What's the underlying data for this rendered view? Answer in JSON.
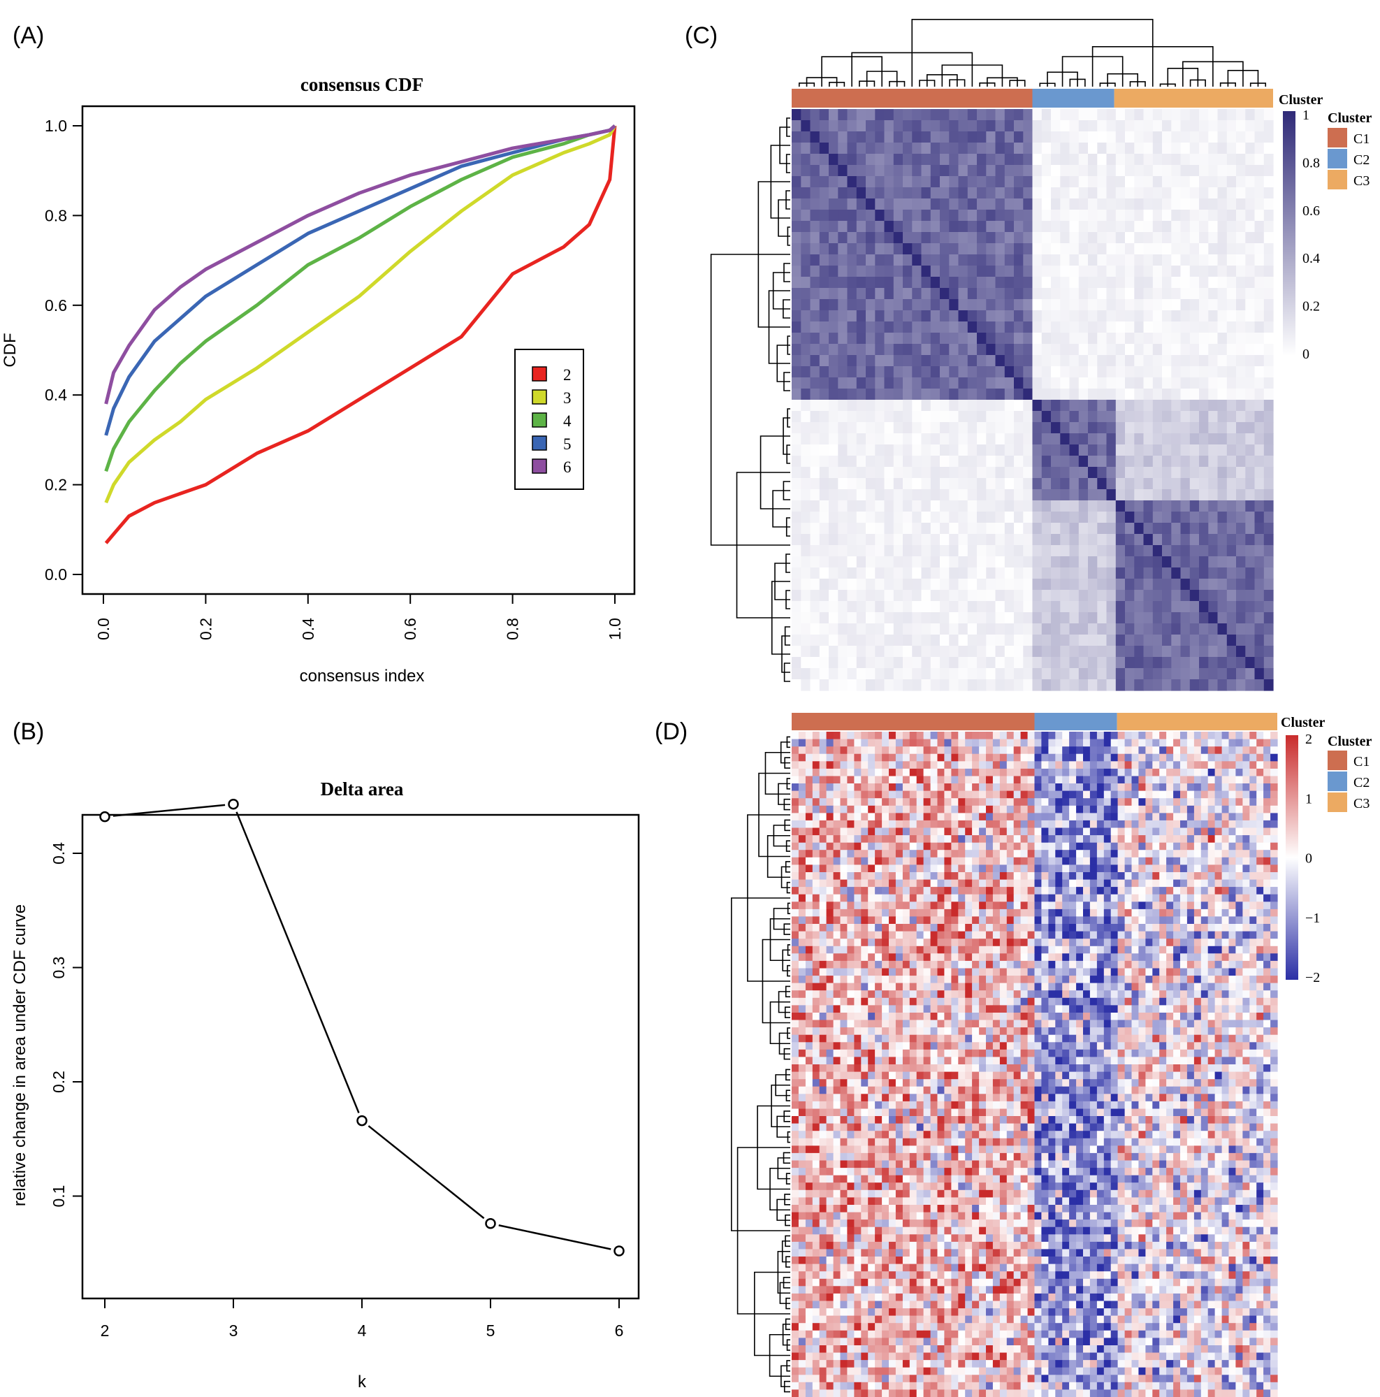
{
  "panels": {
    "a": {
      "tag": "(A)"
    },
    "b": {
      "tag": "(B)"
    },
    "c": {
      "tag": "(C)"
    },
    "d": {
      "tag": "(D)"
    }
  },
  "colors": {
    "k2": "#e82420",
    "k3": "#cfd92a",
    "k4": "#5db346",
    "k5": "#3a66b4",
    "k6": "#8e4ea0",
    "C1": "#cd6e50",
    "C2": "#6a98cf",
    "C3": "#ecaa62",
    "consensus_high": "#2f2a78",
    "expr_high": "#c92b2b",
    "expr_low": "#2b2fa6"
  },
  "chart_data": [
    {
      "id": "consensus-cdf",
      "type": "line",
      "title": "consensus CDF",
      "xlabel": "consensus index",
      "ylabel": "CDF",
      "xlim": [
        0,
        1
      ],
      "ylim": [
        0,
        1
      ],
      "xticks": [
        "0.0",
        "0.2",
        "0.4",
        "0.6",
        "0.8",
        "1.0"
      ],
      "yticks": [
        "0.0",
        "0.2",
        "0.4",
        "0.6",
        "0.8",
        "1.0"
      ],
      "legend_position": "right",
      "x": [
        0.005,
        0.02,
        0.05,
        0.1,
        0.15,
        0.2,
        0.3,
        0.4,
        0.5,
        0.6,
        0.7,
        0.8,
        0.9,
        0.95,
        0.99,
        1.0
      ],
      "series": [
        {
          "name": "2",
          "color_key": "k2",
          "values": [
            0.07,
            0.09,
            0.13,
            0.16,
            0.18,
            0.2,
            0.27,
            0.32,
            0.39,
            0.46,
            0.53,
            0.67,
            0.73,
            0.78,
            0.88,
            1.0
          ]
        },
        {
          "name": "3",
          "color_key": "k3",
          "values": [
            0.16,
            0.2,
            0.25,
            0.3,
            0.34,
            0.39,
            0.46,
            0.54,
            0.62,
            0.72,
            0.81,
            0.89,
            0.94,
            0.96,
            0.98,
            1.0
          ]
        },
        {
          "name": "4",
          "color_key": "k4",
          "values": [
            0.23,
            0.28,
            0.34,
            0.41,
            0.47,
            0.52,
            0.6,
            0.69,
            0.75,
            0.82,
            0.88,
            0.93,
            0.96,
            0.98,
            0.99,
            1.0
          ]
        },
        {
          "name": "5",
          "color_key": "k5",
          "values": [
            0.31,
            0.37,
            0.44,
            0.52,
            0.57,
            0.62,
            0.69,
            0.76,
            0.81,
            0.86,
            0.91,
            0.94,
            0.97,
            0.98,
            0.99,
            1.0
          ]
        },
        {
          "name": "6",
          "color_key": "k6",
          "values": [
            0.38,
            0.45,
            0.51,
            0.59,
            0.64,
            0.68,
            0.74,
            0.8,
            0.85,
            0.89,
            0.92,
            0.95,
            0.97,
            0.98,
            0.99,
            1.0
          ]
        }
      ]
    },
    {
      "id": "delta-area",
      "type": "line",
      "title": "Delta area",
      "xlabel": "k",
      "ylabel": "relative change in area under CDF curve",
      "xlim": [
        2,
        6
      ],
      "ylim": [
        0.05,
        0.44
      ],
      "xticks": [
        "2",
        "3",
        "4",
        "5",
        "6"
      ],
      "yticks": [
        "0.1",
        "0.2",
        "0.3",
        "0.4"
      ],
      "x": [
        2,
        3,
        4,
        5,
        6
      ],
      "values": [
        0.432,
        0.443,
        0.166,
        0.076,
        0.052
      ]
    },
    {
      "id": "consensus-matrix",
      "type": "heatmap",
      "annotation_title": "Cluster",
      "groups": [
        {
          "name": "C1",
          "color_key": "C1",
          "fraction": 0.5
        },
        {
          "name": "C2",
          "color_key": "C2",
          "fraction": 0.17
        },
        {
          "name": "C3",
          "color_key": "C3",
          "fraction": 0.33
        }
      ],
      "color_scale": {
        "min": 0,
        "max": 1,
        "ticks": [
          "0",
          "0.2",
          "0.4",
          "0.6",
          "0.8",
          "1"
        ]
      },
      "legend_title": "Cluster",
      "legend_items": [
        "C1",
        "C2",
        "C3"
      ]
    },
    {
      "id": "expression-heatmap",
      "type": "heatmap",
      "annotation_title": "Cluster",
      "groups": [
        {
          "name": "C1",
          "color_key": "C1",
          "fraction": 0.5
        },
        {
          "name": "C2",
          "color_key": "C2",
          "fraction": 0.17
        },
        {
          "name": "C3",
          "color_key": "C3",
          "fraction": 0.33
        }
      ],
      "color_scale": {
        "min": -2,
        "max": 2,
        "ticks": [
          "2",
          "1",
          "0",
          "−1",
          "−2"
        ]
      },
      "legend_title": "Cluster",
      "legend_items": [
        "C1",
        "C2",
        "C3"
      ]
    }
  ]
}
